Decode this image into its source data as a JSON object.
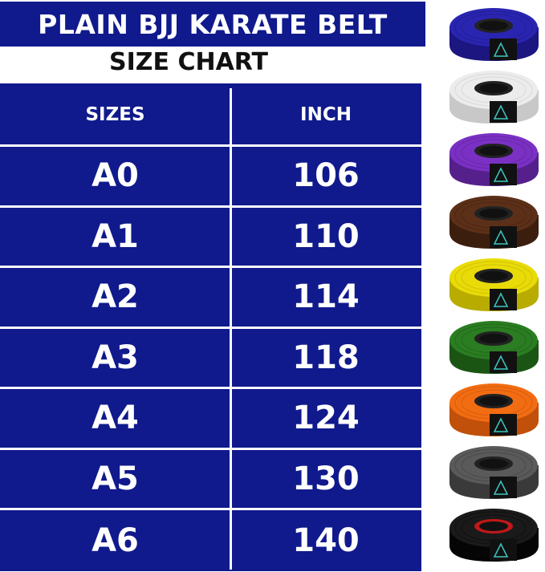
{
  "title": "PLAIN BJJ KARATE BELT",
  "subtitle": "SIZE CHART",
  "table": {
    "headers": [
      "SIZES",
      "INCH"
    ],
    "rows": [
      {
        "size": "A0",
        "inch": "106"
      },
      {
        "size": "A1",
        "inch": "110"
      },
      {
        "size": "A2",
        "inch": "114"
      },
      {
        "size": "A3",
        "inch": "118"
      },
      {
        "size": "A4",
        "inch": "124"
      },
      {
        "size": "A5",
        "inch": "130"
      },
      {
        "size": "A6",
        "inch": "140"
      }
    ]
  },
  "colors": {
    "table_bg": "#101a8c"
  },
  "belts": [
    {
      "color": "blue",
      "hex": "#2a25b0",
      "dark": "#1b1680",
      "core": "#222"
    },
    {
      "color": "white",
      "hex": "#ececec",
      "dark": "#c8c8c8",
      "core": "#222"
    },
    {
      "color": "purple",
      "hex": "#7b30c4",
      "dark": "#55208c",
      "core": "#222"
    },
    {
      "color": "brown",
      "hex": "#5c3018",
      "dark": "#3c1e0e",
      "core": "#222"
    },
    {
      "color": "yellow",
      "hex": "#e9db08",
      "dark": "#b8ac00",
      "core": "#222"
    },
    {
      "color": "green",
      "hex": "#2b7d22",
      "dark": "#1b5514",
      "core": "#222"
    },
    {
      "color": "orange",
      "hex": "#f26c12",
      "dark": "#c0500a",
      "core": "#222"
    },
    {
      "color": "gray",
      "hex": "#5a5a5a",
      "dark": "#3a3a3a",
      "core": "#222"
    },
    {
      "color": "black",
      "hex": "#1a1a1a",
      "dark": "#050505",
      "core": "#c01818"
    }
  ]
}
